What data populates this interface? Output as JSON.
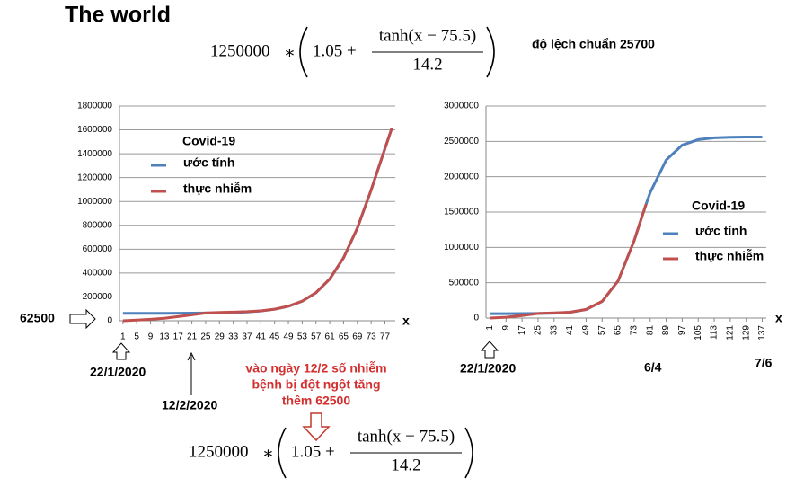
{
  "header": {
    "title": "The world",
    "std_note": "độ lệch chuẩn 25700"
  },
  "formula": {
    "coef": "1250000",
    "op": "∗",
    "a": "1.05 +",
    "num": "tanh(x − 75.5)",
    "den": "14.2"
  },
  "chart_data": [
    {
      "type": "line",
      "legend_title": "Covid-19",
      "x_label": "x",
      "x": [
        1,
        5,
        9,
        13,
        17,
        21,
        25,
        29,
        33,
        37,
        41,
        45,
        49,
        53,
        57,
        61,
        65,
        69,
        73,
        77,
        79
      ],
      "series": [
        {
          "name": "ước tính",
          "color": "#4f81bd",
          "values": [
            62569,
            62621,
            62714,
            62875,
            63160,
            63660,
            64534,
            66070,
            68763,
            73475,
            81725,
            96088,
            121000,
            163388,
            234425,
            349750,
            527000,
            776900,
            1094750,
            1443000,
            1614500
          ]
        },
        {
          "name": "thực nhiễm",
          "color": "#c0504d",
          "values": [
            0,
            5000,
            12000,
            20000,
            35000,
            50000,
            65000,
            70000,
            72000,
            76000,
            83000,
            97000,
            122000,
            165000,
            236000,
            350000,
            527000,
            776900,
            1094750,
            1443000,
            1614500
          ]
        }
      ],
      "xlim": [
        0,
        80
      ],
      "xticks": [
        1,
        5,
        9,
        13,
        17,
        21,
        25,
        29,
        33,
        37,
        41,
        45,
        49,
        53,
        57,
        61,
        65,
        69,
        73,
        77
      ],
      "ylim": [
        0,
        1800000
      ],
      "yticks": [
        0,
        200000,
        400000,
        600000,
        800000,
        1000000,
        1200000,
        1400000,
        1600000,
        1800000
      ],
      "grid": true,
      "annotations": [
        "62500",
        "22/1/2020",
        "12/2/2020"
      ],
      "note": [
        "vào ngày 12/2 số nhiễm",
        "bệnh bị đột ngột tăng",
        "thêm 62500"
      ]
    },
    {
      "type": "line",
      "legend_title": "Covid-19",
      "x_label": "x",
      "x": [
        1,
        9,
        17,
        25,
        33,
        41,
        49,
        57,
        65,
        73,
        77,
        79,
        81,
        89,
        97,
        105,
        113,
        121,
        129,
        137
      ],
      "series": [
        {
          "name": "ước tính",
          "color": "#4f81bd",
          "values": [
            62569,
            62714,
            63160,
            64534,
            68763,
            81725,
            121000,
            234425,
            527000,
            1094750,
            1443000,
            1614500,
            1773600,
            2237750,
            2447400,
            2524500,
            2549900,
            2558400,
            2561160,
            2562060
          ]
        },
        {
          "name": "thực nhiễm",
          "color": "#c0504d",
          "values": [
            0,
            12000,
            35000,
            65000,
            72000,
            83000,
            122000,
            236000,
            527000,
            1094750,
            1443000,
            1614500,
            null,
            null,
            null,
            null,
            null,
            null,
            null,
            null
          ]
        }
      ],
      "xlim": [
        -1,
        139
      ],
      "xticks": [
        1,
        9,
        17,
        25,
        33,
        41,
        49,
        57,
        65,
        73,
        81,
        89,
        97,
        105,
        113,
        121,
        129,
        137
      ],
      "ylim": [
        0,
        3000000
      ],
      "yticks": [
        0,
        500000,
        1000000,
        1500000,
        2000000,
        2500000,
        3000000
      ],
      "grid": true,
      "annotations": [
        "22/1/2020",
        "6/4",
        "7/6"
      ]
    }
  ]
}
